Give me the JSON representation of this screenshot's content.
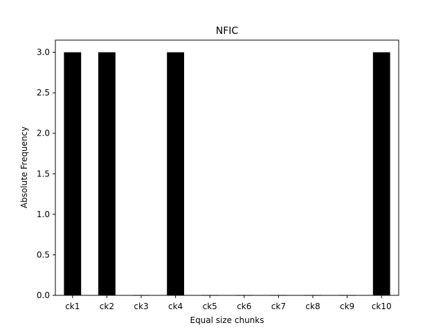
{
  "chart_data": {
    "type": "bar",
    "title": "NFIC",
    "xlabel": "Equal size chunks",
    "ylabel": "Absolute Frequency",
    "categories": [
      "ck1",
      "ck2",
      "ck3",
      "ck4",
      "ck5",
      "ck6",
      "ck7",
      "ck8",
      "ck9",
      "ck10"
    ],
    "values": [
      3,
      3,
      0,
      3,
      0,
      0,
      0,
      0,
      0,
      3
    ],
    "ylim": [
      0,
      3.15
    ],
    "yticks": [
      0.0,
      0.5,
      1.0,
      1.5,
      2.0,
      2.5,
      3.0
    ],
    "grid": false,
    "bar_color": "#000000"
  }
}
